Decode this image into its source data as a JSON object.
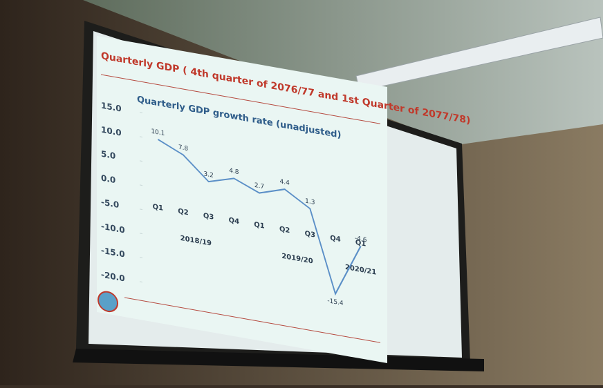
{
  "chart_data": {
    "type": "line",
    "title": "Quarterly GDP ( 4th quarter of 2076/77 and 1st Quarter of 2077/78)",
    "subtitle": "Quarterly GDP growth rate (unadjusted)",
    "groups": [
      {
        "label": "2018/19",
        "categories": [
          "Q1",
          "Q2",
          "Q3",
          "Q4"
        ]
      },
      {
        "label": "2019/20",
        "categories": [
          "Q1",
          "Q2",
          "Q3",
          "Q4"
        ]
      },
      {
        "label": "2020/21",
        "categories": [
          "Q1"
        ]
      }
    ],
    "series": [
      {
        "name": "Quarterly GDP growth rate",
        "color": "#5b8fc7",
        "values": [
          10.1,
          7.8,
          3.2,
          4.8,
          2.7,
          4.4,
          1.3,
          -15.4,
          -4.6
        ]
      }
    ],
    "ylim": [
      -20,
      15
    ],
    "yticks": [
      {
        "value": 15,
        "label": "15.0"
      },
      {
        "value": 10,
        "label": "10.0"
      },
      {
        "value": 5,
        "label": "5.0"
      },
      {
        "value": 0,
        "label": "0.0"
      },
      {
        "value": -5,
        "label": "-5.0"
      },
      {
        "value": -10,
        "label": "-10.0"
      },
      {
        "value": -15,
        "label": "-15.0"
      },
      {
        "value": -20,
        "label": "-20.0"
      }
    ]
  }
}
